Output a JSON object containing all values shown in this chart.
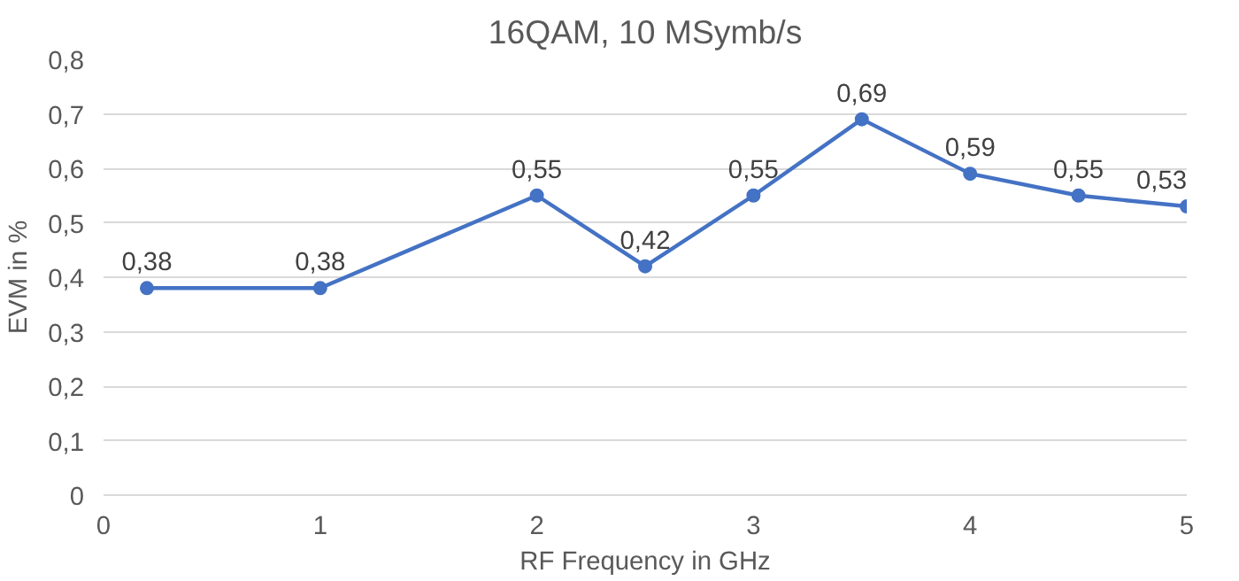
{
  "chart_data": {
    "type": "line",
    "title": "16QAM, 10 MSymb/s",
    "xlabel": "RF Frequency in GHz",
    "ylabel": "EVM in %",
    "x": [
      0.2,
      1,
      2,
      2.5,
      3,
      3.5,
      4,
      4.5,
      5
    ],
    "series": [
      {
        "color": "#4472c4",
        "values": [
          0.38,
          0.38,
          0.55,
          0.42,
          0.55,
          0.69,
          0.59,
          0.55,
          0.53
        ],
        "value_labels": [
          "0,38",
          "0,38",
          "0,55",
          "0,42",
          "0,55",
          "0,69",
          "0,59",
          "0,55",
          "0,53"
        ]
      }
    ],
    "xlim": [
      0,
      5
    ],
    "xticks": [
      0,
      1,
      2,
      3,
      4,
      5
    ],
    "ylim": [
      0,
      0.8
    ],
    "yticks": [
      0,
      {
        "value": 0.1,
        "label": "0,1"
      },
      {
        "value": 0.2,
        "label": "0,2"
      },
      {
        "value": 0.3,
        "label": "0,3"
      },
      {
        "value": 0.4,
        "label": "0,4"
      },
      {
        "value": 0.5,
        "label": "0,5"
      },
      {
        "value": 0.6,
        "label": "0,6"
      },
      {
        "value": 0.7,
        "label": "0,7"
      },
      {
        "value": 0.8,
        "label": "0,8"
      }
    ],
    "grid": "y",
    "marker": "circle",
    "line_style": "solid"
  }
}
